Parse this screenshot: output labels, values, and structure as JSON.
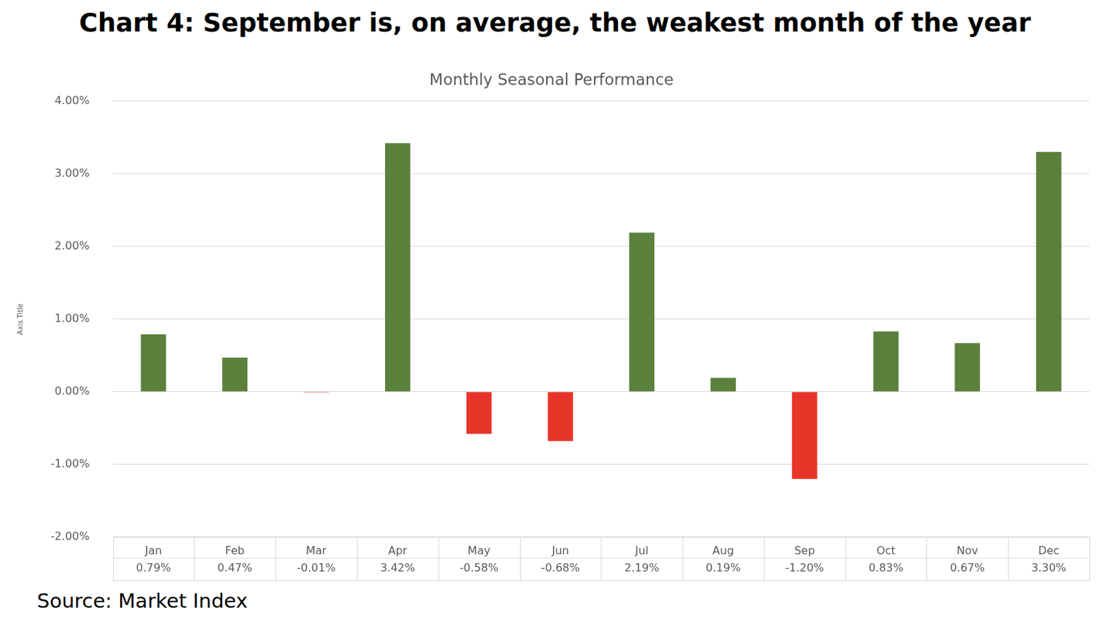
{
  "chart_data": {
    "type": "bar",
    "title": "Chart 4: September is, on average, the weakest month of the year",
    "subtitle": "Monthly Seasonal Performance",
    "source": "Source: Market Index",
    "y_label": "Axis Title",
    "categories": [
      "Jan",
      "Feb",
      "Mar",
      "Apr",
      "May",
      "Jun",
      "Jul",
      "Aug",
      "Sep",
      "Oct",
      "Nov",
      "Dec"
    ],
    "values": [
      0.79,
      0.47,
      -0.01,
      3.42,
      -0.58,
      -0.68,
      2.19,
      0.19,
      -1.2,
      0.83,
      0.67,
      3.3
    ],
    "value_labels": [
      "0.79%",
      "0.47%",
      "-0.01%",
      "3.42%",
      "-0.58%",
      "-0.68%",
      "2.19%",
      "0.19%",
      "-1.20%",
      "0.83%",
      "0.67%",
      "3.30%"
    ],
    "colors": [
      "#5b803c",
      "#5b803c",
      "#e8352a",
      "#5b803c",
      "#e8352a",
      "#e8352a",
      "#5b803c",
      "#5b803c",
      "#e8352a",
      "#5b803c",
      "#5b803c",
      "#5b803c"
    ],
    "ylim": [
      -2,
      4
    ],
    "yticks": [
      {
        "value": -2,
        "label": "-2.00%"
      },
      {
        "value": -1,
        "label": "-1.00%"
      },
      {
        "value": 0,
        "label": "0.00%"
      },
      {
        "value": 1,
        "label": "1.00%"
      },
      {
        "value": 2,
        "label": "2.00%"
      },
      {
        "value": 3,
        "label": "3.00%"
      },
      {
        "value": 4,
        "label": "4.00%"
      }
    ],
    "grid": true
  }
}
